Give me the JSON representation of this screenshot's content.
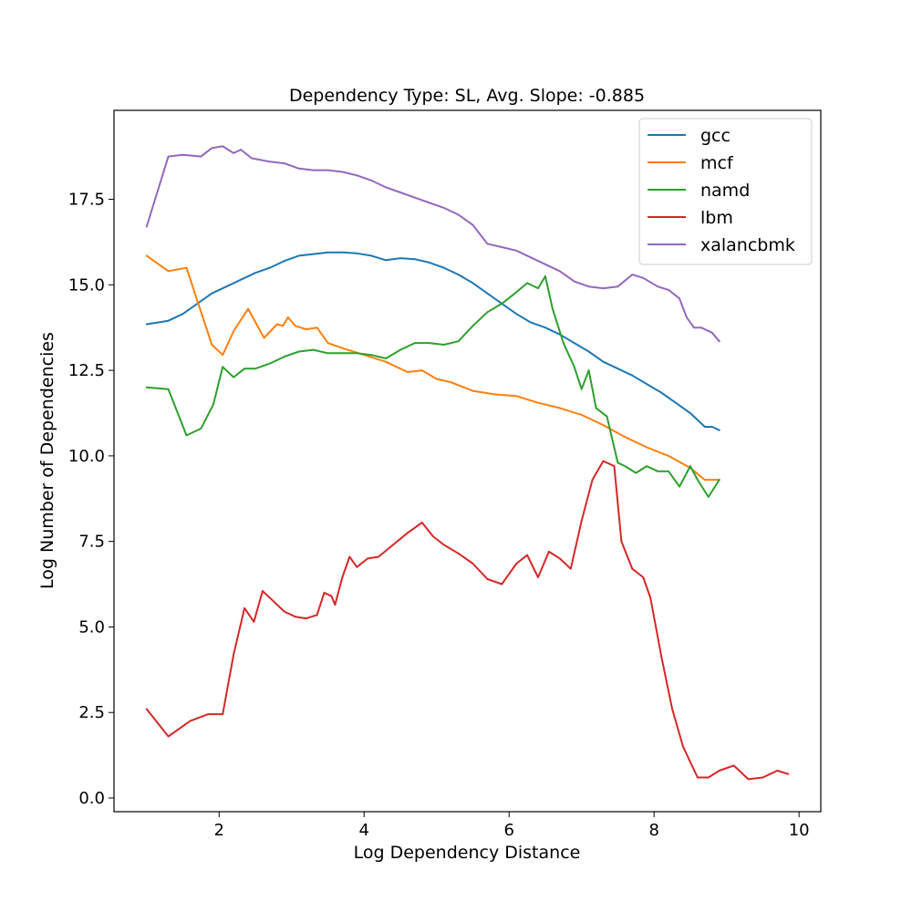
{
  "chart_data": {
    "type": "line",
    "title": "Dependency Type: SL, Avg. Slope: -0.885",
    "xlabel": "Log Dependency Distance",
    "ylabel": "Log Number of Dependencies",
    "xlim": [
      0.55,
      10.3
    ],
    "ylim": [
      -0.4,
      20.1
    ],
    "xticks": [
      2,
      4,
      6,
      8,
      10
    ],
    "xtick_labels": [
      "2",
      "4",
      "6",
      "8",
      "10"
    ],
    "yticks": [
      0.0,
      2.5,
      5.0,
      7.5,
      10.0,
      12.5,
      15.0,
      17.5
    ],
    "ytick_labels": [
      "0.0",
      "2.5",
      "5.0",
      "7.5",
      "10.0",
      "12.5",
      "15.0",
      "17.5"
    ],
    "grid": false,
    "legend_position": "top-right",
    "series": [
      {
        "name": "gcc",
        "color": "#1f77b4",
        "x": [
          1.0,
          1.3,
          1.5,
          1.7,
          1.9,
          2.1,
          2.3,
          2.5,
          2.7,
          2.9,
          3.1,
          3.3,
          3.5,
          3.7,
          3.9,
          4.1,
          4.3,
          4.5,
          4.7,
          4.9,
          5.1,
          5.3,
          5.5,
          5.7,
          5.9,
          6.1,
          6.3,
          6.5,
          6.7,
          6.9,
          7.1,
          7.3,
          7.5,
          7.7,
          7.9,
          8.1,
          8.3,
          8.5,
          8.7,
          8.8,
          8.9
        ],
        "y": [
          13.85,
          13.95,
          14.15,
          14.45,
          14.75,
          14.95,
          15.15,
          15.35,
          15.5,
          15.7,
          15.85,
          15.9,
          15.95,
          15.95,
          15.92,
          15.85,
          15.72,
          15.78,
          15.75,
          15.65,
          15.5,
          15.3,
          15.05,
          14.75,
          14.45,
          14.15,
          13.9,
          13.75,
          13.55,
          13.3,
          13.05,
          12.75,
          12.55,
          12.35,
          12.1,
          11.85,
          11.55,
          11.25,
          10.85,
          10.85,
          10.75
        ]
      },
      {
        "name": "mcf",
        "color": "#ff7f0e",
        "x": [
          1.0,
          1.3,
          1.55,
          1.9,
          2.05,
          2.2,
          2.4,
          2.62,
          2.8,
          2.88,
          2.95,
          3.05,
          3.2,
          3.35,
          3.5,
          3.7,
          4.0,
          4.3,
          4.6,
          4.8,
          5.0,
          5.2,
          5.5,
          5.8,
          6.1,
          6.4,
          6.7,
          7.0,
          7.3,
          7.6,
          7.9,
          8.2,
          8.5,
          8.7,
          8.9
        ],
        "y": [
          15.85,
          15.4,
          15.5,
          13.25,
          12.95,
          13.65,
          14.3,
          13.45,
          13.85,
          13.8,
          14.05,
          13.8,
          13.7,
          13.75,
          13.3,
          13.15,
          12.95,
          12.75,
          12.45,
          12.5,
          12.25,
          12.15,
          11.9,
          11.8,
          11.75,
          11.55,
          11.4,
          11.2,
          10.9,
          10.55,
          10.25,
          10.0,
          9.65,
          9.3,
          9.3
        ]
      },
      {
        "name": "namd",
        "color": "#2ca02c",
        "x": [
          1.0,
          1.3,
          1.55,
          1.75,
          1.92,
          2.05,
          2.2,
          2.35,
          2.5,
          2.7,
          2.9,
          3.1,
          3.3,
          3.5,
          3.7,
          3.9,
          4.1,
          4.3,
          4.5,
          4.7,
          4.9,
          5.1,
          5.3,
          5.5,
          5.7,
          5.9,
          6.05,
          6.25,
          6.4,
          6.5,
          6.6,
          6.75,
          6.9,
          7.0,
          7.1,
          7.2,
          7.35,
          7.5,
          7.6,
          7.75,
          7.9,
          8.05,
          8.2,
          8.35,
          8.5,
          8.6,
          8.75,
          8.9
        ],
        "y": [
          12.0,
          11.95,
          10.6,
          10.8,
          11.5,
          12.6,
          12.3,
          12.55,
          12.55,
          12.7,
          12.9,
          13.05,
          13.1,
          13.0,
          13.0,
          13.0,
          12.95,
          12.85,
          13.1,
          13.3,
          13.3,
          13.25,
          13.35,
          13.8,
          14.2,
          14.45,
          14.7,
          15.05,
          14.9,
          15.25,
          14.3,
          13.3,
          12.6,
          11.95,
          12.5,
          11.4,
          11.15,
          9.8,
          9.7,
          9.5,
          9.7,
          9.55,
          9.55,
          9.1,
          9.7,
          9.3,
          8.8,
          9.3
        ]
      },
      {
        "name": "lbm",
        "color": "#d62728",
        "x": [
          1.0,
          1.3,
          1.6,
          1.85,
          2.05,
          2.2,
          2.35,
          2.48,
          2.6,
          2.75,
          2.9,
          3.05,
          3.2,
          3.35,
          3.45,
          3.55,
          3.6,
          3.7,
          3.8,
          3.9,
          4.05,
          4.2,
          4.4,
          4.6,
          4.8,
          4.95,
          5.1,
          5.3,
          5.5,
          5.7,
          5.9,
          6.1,
          6.25,
          6.4,
          6.55,
          6.7,
          6.85,
          7.0,
          7.15,
          7.3,
          7.45,
          7.55,
          7.7,
          7.85,
          7.95,
          8.1,
          8.25,
          8.4,
          8.6,
          8.75,
          8.9,
          9.1,
          9.3,
          9.5,
          9.7,
          9.85
        ],
        "y": [
          2.6,
          1.8,
          2.25,
          2.45,
          2.45,
          4.2,
          5.55,
          5.15,
          6.05,
          5.75,
          5.45,
          5.3,
          5.25,
          5.35,
          6.0,
          5.9,
          5.65,
          6.45,
          7.05,
          6.75,
          7.0,
          7.05,
          7.4,
          7.75,
          8.05,
          7.65,
          7.4,
          7.15,
          6.85,
          6.4,
          6.25,
          6.85,
          7.1,
          6.45,
          7.2,
          7.0,
          6.7,
          8.1,
          9.3,
          9.85,
          9.7,
          7.5,
          6.7,
          6.45,
          5.85,
          4.15,
          2.6,
          1.5,
          0.6,
          0.6,
          0.8,
          0.95,
          0.55,
          0.6,
          0.8,
          0.7
        ]
      },
      {
        "name": "xalancbmk",
        "color": "#9467bd",
        "x": [
          1.0,
          1.3,
          1.5,
          1.75,
          1.9,
          2.05,
          2.2,
          2.3,
          2.45,
          2.7,
          2.9,
          3.1,
          3.3,
          3.5,
          3.7,
          3.9,
          4.1,
          4.3,
          4.5,
          4.7,
          4.9,
          5.1,
          5.3,
          5.5,
          5.7,
          5.9,
          6.1,
          6.3,
          6.5,
          6.7,
          6.9,
          7.1,
          7.3,
          7.5,
          7.7,
          7.85,
          8.05,
          8.2,
          8.35,
          8.45,
          8.55,
          8.65,
          8.8,
          8.9
        ],
        "y": [
          16.7,
          18.75,
          18.8,
          18.75,
          19.0,
          19.05,
          18.85,
          18.95,
          18.7,
          18.6,
          18.55,
          18.4,
          18.35,
          18.35,
          18.3,
          18.2,
          18.05,
          17.85,
          17.7,
          17.55,
          17.4,
          17.25,
          17.05,
          16.75,
          16.2,
          16.1,
          16.0,
          15.8,
          15.6,
          15.4,
          15.1,
          14.95,
          14.9,
          14.95,
          15.3,
          15.2,
          14.95,
          14.85,
          14.6,
          14.05,
          13.75,
          13.75,
          13.6,
          13.35
        ]
      }
    ]
  }
}
